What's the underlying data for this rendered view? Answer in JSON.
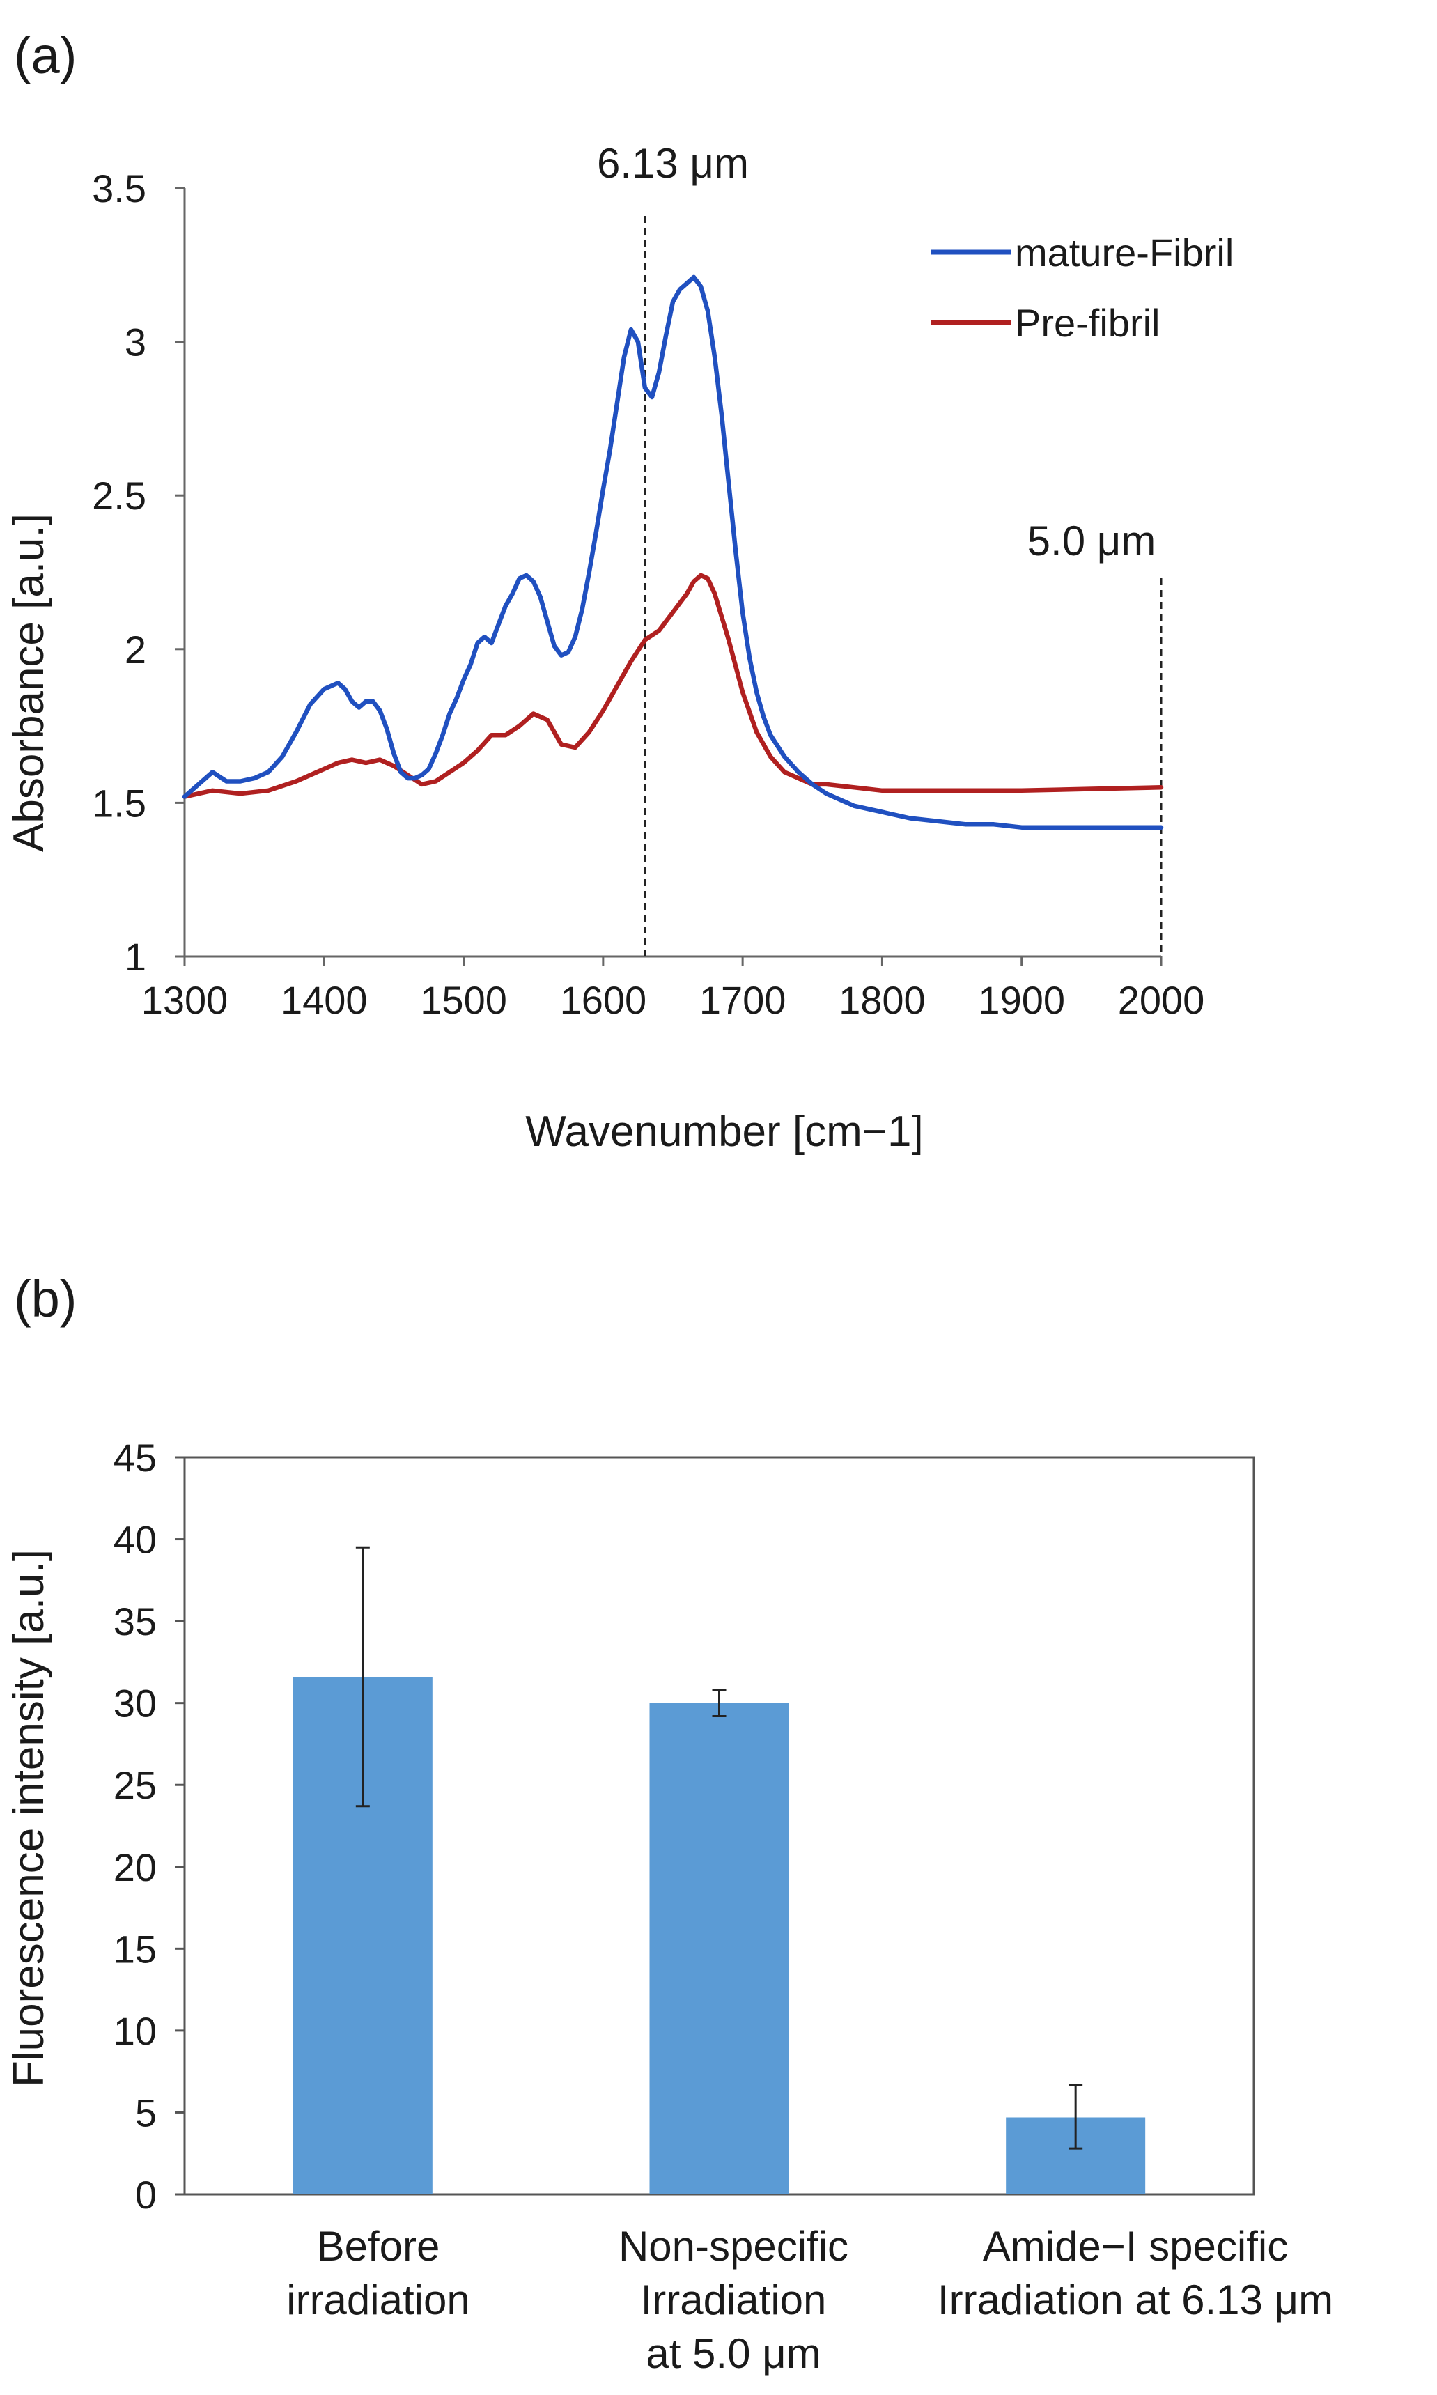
{
  "chart_data": [
    {
      "panel": "(a)",
      "type": "line",
      "title": "",
      "xlabel": "Wavenumber [cm−1]",
      "ylabel": "Absorbance [a.u.]",
      "xlim": [
        1300,
        2000
      ],
      "ylim": [
        1,
        3.5
      ],
      "xticks": [
        1300,
        1400,
        1500,
        1600,
        1700,
        1800,
        1900,
        2000
      ],
      "yticks": [
        1,
        1.5,
        2,
        2.5,
        3,
        3.5
      ],
      "xtick_labels": [
        "1300",
        "1400",
        "1500",
        "1600",
        "1700",
        "1800",
        "1900",
        "2000"
      ],
      "ytick_labels": [
        "1",
        "1.5",
        "2",
        "2.5",
        "3",
        "3.5"
      ],
      "grid": false,
      "legend_position": "top-right",
      "series": [
        {
          "name": "mature-Fibril",
          "color": "#2050c0",
          "x": [
            1300,
            1310,
            1320,
            1330,
            1340,
            1350,
            1360,
            1370,
            1380,
            1390,
            1400,
            1410,
            1415,
            1420,
            1425,
            1430,
            1435,
            1440,
            1445,
            1450,
            1455,
            1460,
            1465,
            1470,
            1475,
            1480,
            1485,
            1490,
            1495,
            1500,
            1505,
            1510,
            1515,
            1520,
            1525,
            1530,
            1535,
            1540,
            1545,
            1550,
            1555,
            1560,
            1565,
            1570,
            1575,
            1580,
            1585,
            1590,
            1595,
            1600,
            1605,
            1610,
            1615,
            1620,
            1625,
            1630,
            1635,
            1640,
            1645,
            1650,
            1655,
            1660,
            1665,
            1670,
            1675,
            1680,
            1685,
            1690,
            1695,
            1700,
            1705,
            1710,
            1715,
            1720,
            1730,
            1740,
            1750,
            1760,
            1770,
            1780,
            1800,
            1820,
            1840,
            1860,
            1880,
            1900,
            1920,
            1940,
            1960,
            1980,
            2000
          ],
          "values": [
            1.52,
            1.56,
            1.6,
            1.57,
            1.57,
            1.58,
            1.6,
            1.65,
            1.73,
            1.82,
            1.87,
            1.89,
            1.87,
            1.83,
            1.81,
            1.83,
            1.83,
            1.8,
            1.74,
            1.66,
            1.6,
            1.58,
            1.58,
            1.59,
            1.61,
            1.66,
            1.72,
            1.79,
            1.84,
            1.9,
            1.95,
            2.02,
            2.04,
            2.02,
            2.08,
            2.14,
            2.18,
            2.23,
            2.24,
            2.22,
            2.17,
            2.09,
            2.01,
            1.98,
            1.99,
            2.04,
            2.13,
            2.25,
            2.38,
            2.52,
            2.65,
            2.8,
            2.95,
            3.04,
            3.0,
            2.85,
            2.82,
            2.9,
            3.02,
            3.13,
            3.17,
            3.19,
            3.21,
            3.18,
            3.1,
            2.95,
            2.76,
            2.54,
            2.32,
            2.12,
            1.97,
            1.86,
            1.78,
            1.72,
            1.65,
            1.6,
            1.56,
            1.53,
            1.51,
            1.49,
            1.47,
            1.45,
            1.44,
            1.43,
            1.43,
            1.42,
            1.42,
            1.42,
            1.42,
            1.42,
            1.42
          ]
        },
        {
          "name": "Pre-fibril",
          "color": "#b02020",
          "x": [
            1300,
            1320,
            1340,
            1360,
            1380,
            1400,
            1410,
            1420,
            1430,
            1440,
            1450,
            1460,
            1470,
            1480,
            1490,
            1500,
            1510,
            1520,
            1530,
            1540,
            1550,
            1560,
            1570,
            1580,
            1590,
            1600,
            1610,
            1620,
            1630,
            1640,
            1650,
            1660,
            1665,
            1670,
            1675,
            1680,
            1690,
            1700,
            1710,
            1720,
            1730,
            1740,
            1750,
            1760,
            1780,
            1800,
            1850,
            1900,
            1950,
            2000
          ],
          "values": [
            1.52,
            1.54,
            1.53,
            1.54,
            1.57,
            1.61,
            1.63,
            1.64,
            1.63,
            1.64,
            1.62,
            1.59,
            1.56,
            1.57,
            1.6,
            1.63,
            1.67,
            1.72,
            1.72,
            1.75,
            1.79,
            1.77,
            1.69,
            1.68,
            1.73,
            1.8,
            1.88,
            1.96,
            2.03,
            2.06,
            2.12,
            2.18,
            2.22,
            2.24,
            2.23,
            2.18,
            2.03,
            1.86,
            1.73,
            1.65,
            1.6,
            1.58,
            1.56,
            1.56,
            1.55,
            1.54,
            1.54,
            1.54,
            1.545,
            1.55
          ]
        }
      ],
      "annotations": [
        {
          "label": "6.13 μm",
          "x": 1630,
          "style": "dashed vertical line"
        },
        {
          "label": "5.0 μm",
          "x": 2000,
          "style": "dashed vertical line"
        }
      ]
    },
    {
      "panel": "(b)",
      "type": "bar",
      "title": "",
      "xlabel": "",
      "ylabel": "Fluorescence intensity [a.u.]",
      "ylim": [
        0,
        45
      ],
      "yticks": [
        0,
        5,
        10,
        15,
        20,
        25,
        30,
        35,
        40,
        45
      ],
      "ytick_labels": [
        "0",
        "5",
        "10",
        "15",
        "20",
        "25",
        "30",
        "35",
        "40",
        "45"
      ],
      "grid": false,
      "bar_color": "#5b9bd5",
      "categories": [
        [
          "Before",
          "irradiation"
        ],
        [
          "Non-specific",
          "Irradiation",
          "at 5.0 μm"
        ],
        [
          "Amide−I specific",
          "Irradiation at 6.13 μm"
        ]
      ],
      "values": [
        31.6,
        30.0,
        4.7
      ],
      "error_bars": [
        {
          "low": 23.7,
          "high": 39.5
        },
        {
          "low": 29.2,
          "high": 30.8
        },
        {
          "low": 2.8,
          "high": 6.7
        }
      ]
    }
  ]
}
